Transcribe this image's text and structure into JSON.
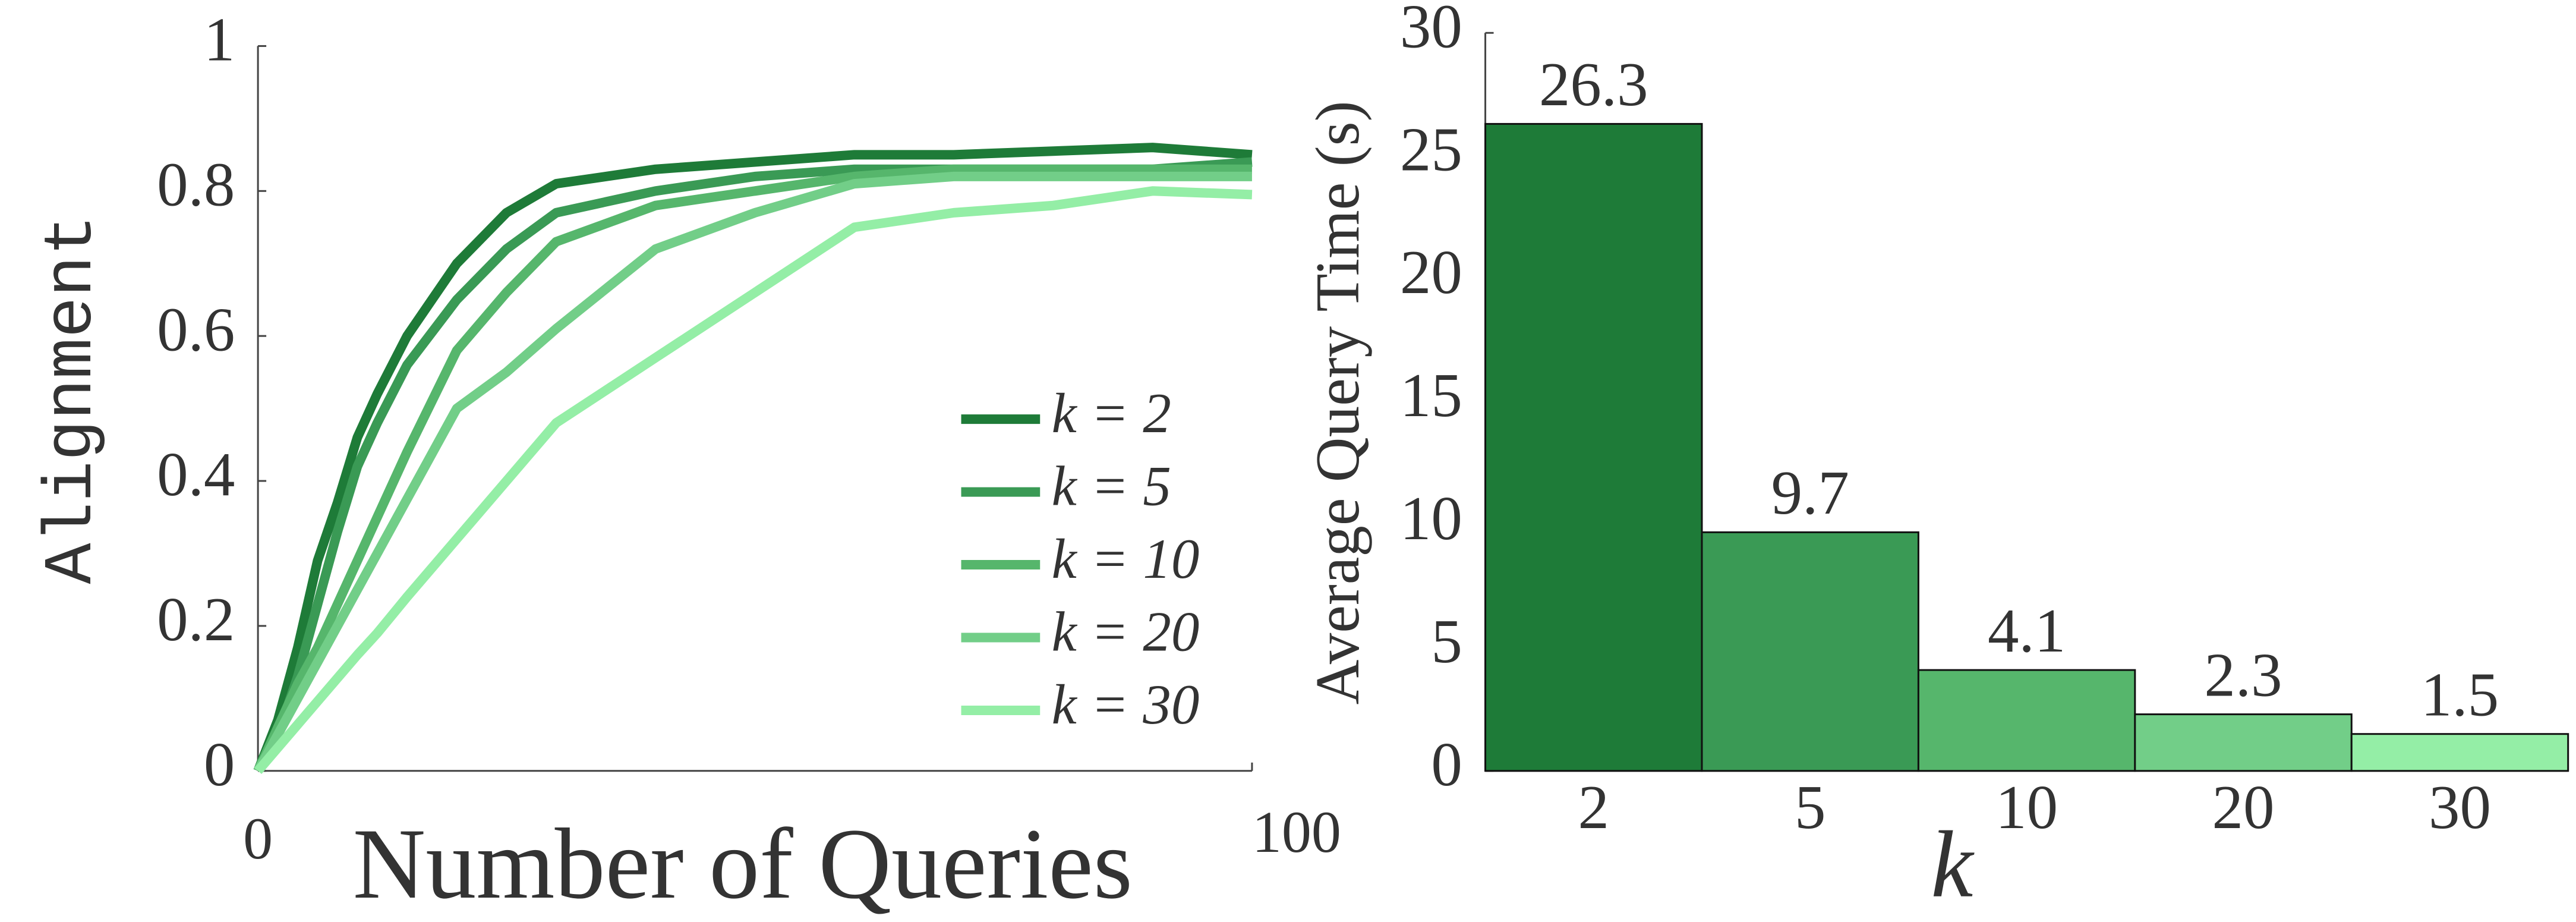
{
  "chart_data": [
    {
      "type": "line",
      "xlabel": "Number of Queries",
      "ylabel": "Alignment",
      "x": [
        0,
        2,
        4,
        6,
        8,
        10,
        12,
        15,
        20,
        25,
        30,
        40,
        50,
        60,
        70,
        80,
        90,
        100
      ],
      "xlim": [
        0,
        100
      ],
      "ylim": [
        0,
        1
      ],
      "xticks": [
        0,
        100
      ],
      "yticks": [
        0,
        0.2,
        0.4,
        0.6,
        0.8,
        1
      ],
      "series": [
        {
          "name": "k = 2",
          "color": "#1e7b38",
          "values": [
            0,
            0.07,
            0.17,
            0.29,
            0.37,
            0.46,
            0.52,
            0.6,
            0.7,
            0.77,
            0.81,
            0.83,
            0.84,
            0.85,
            0.85,
            0.855,
            0.86,
            0.85
          ]
        },
        {
          "name": "k = 5",
          "color": "#3a9a55",
          "values": [
            0,
            0.05,
            0.13,
            0.23,
            0.33,
            0.42,
            0.48,
            0.56,
            0.65,
            0.72,
            0.77,
            0.8,
            0.82,
            0.83,
            0.83,
            0.83,
            0.83,
            0.84
          ]
        },
        {
          "name": "k = 10",
          "color": "#56b66c",
          "values": [
            0,
            0.06,
            0.12,
            0.17,
            0.23,
            0.29,
            0.35,
            0.44,
            0.58,
            0.66,
            0.73,
            0.78,
            0.8,
            0.82,
            0.83,
            0.83,
            0.83,
            0.83
          ]
        },
        {
          "name": "k = 20",
          "color": "#72ce88",
          "values": [
            0,
            0.05,
            0.1,
            0.15,
            0.2,
            0.25,
            0.3,
            0.375,
            0.5,
            0.55,
            0.61,
            0.72,
            0.77,
            0.81,
            0.82,
            0.82,
            0.82,
            0.82
          ]
        },
        {
          "name": "k = 30",
          "color": "#94eea6",
          "values": [
            0,
            0.032,
            0.064,
            0.096,
            0.128,
            0.16,
            0.19,
            0.24,
            0.32,
            0.4,
            0.48,
            0.57,
            0.66,
            0.75,
            0.77,
            0.78,
            0.8,
            0.795
          ]
        }
      ]
    },
    {
      "type": "bar",
      "xlabel": "k",
      "ylabel": "Average Query Time (s)",
      "categories": [
        "2",
        "5",
        "10",
        "20",
        "30"
      ],
      "values": [
        26.3,
        9.7,
        4.1,
        2.3,
        1.5
      ],
      "colors": [
        "#1e7b38",
        "#3a9a55",
        "#56b66c",
        "#72ce88",
        "#94eea6"
      ],
      "ylim": [
        0,
        30
      ],
      "yticks": [
        0,
        5,
        10,
        15,
        20,
        25,
        30
      ]
    }
  ]
}
